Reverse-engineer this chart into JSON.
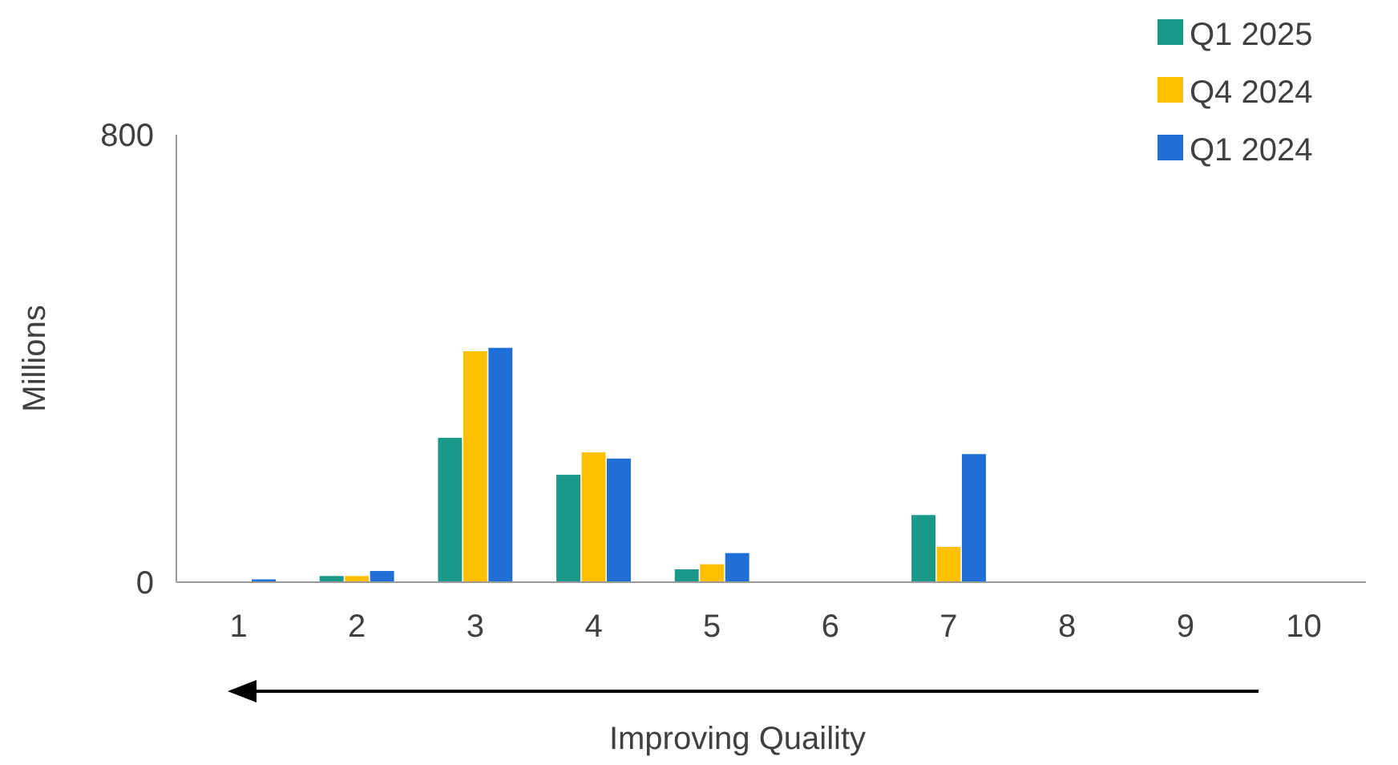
{
  "chart_data": {
    "type": "bar",
    "xlabel": "Improving Quaility",
    "ylabel": "Millions",
    "categories": [
      "1",
      "2",
      "3",
      "4",
      "5",
      "6",
      "7",
      "8",
      "9",
      "10"
    ],
    "series": [
      {
        "name": "Q1 2025",
        "color": "#1a9988",
        "values": [
          0,
          11,
          258,
          192,
          23,
          0,
          120,
          0,
          0,
          0
        ]
      },
      {
        "name": "Q4 2024",
        "color": "#ffc000",
        "values": [
          0,
          11,
          413,
          232,
          32,
          0,
          63,
          0,
          0,
          0
        ]
      },
      {
        "name": "Q1 2024",
        "color": "#1f6fd6",
        "values": [
          5,
          20,
          419,
          221,
          52,
          0,
          229,
          0,
          0,
          0
        ]
      }
    ],
    "ylim": [
      0,
      800
    ],
    "yticks": [
      0,
      800
    ],
    "grid": false,
    "legend": "top right"
  }
}
